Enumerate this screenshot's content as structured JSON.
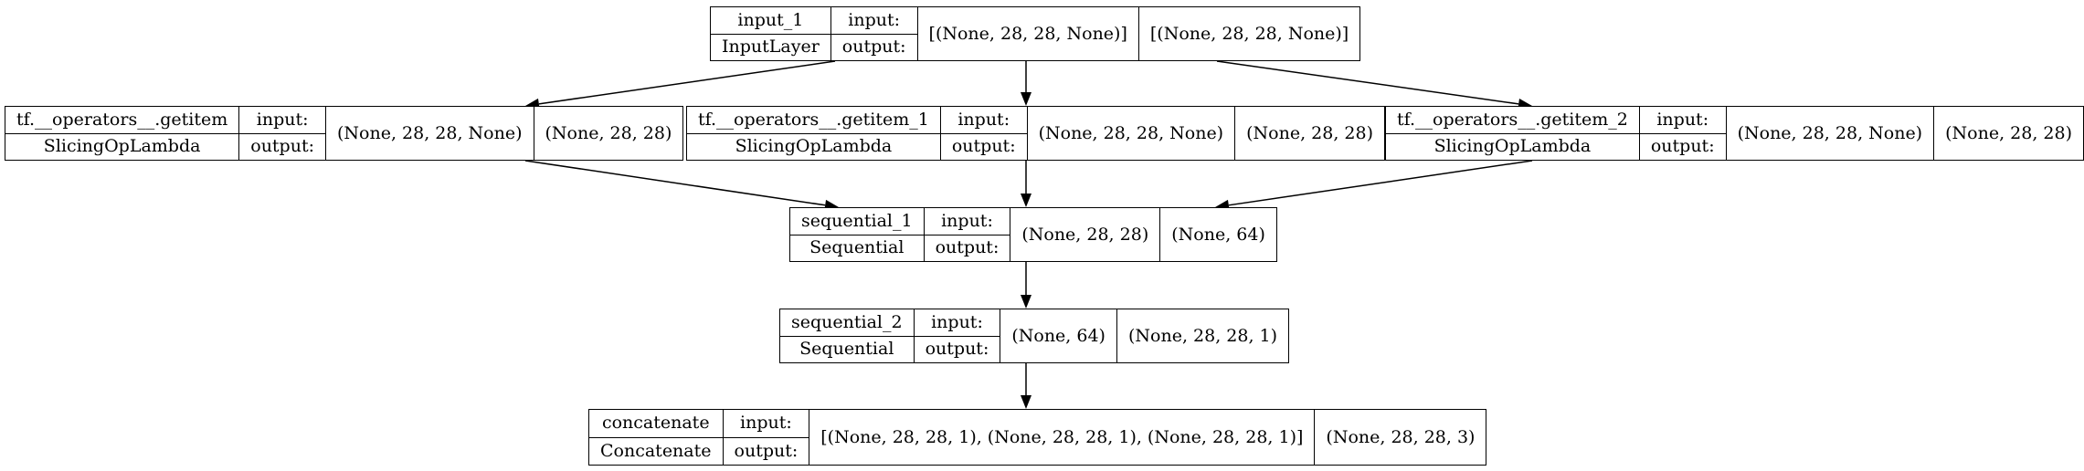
{
  "diagram": {
    "nodes": [
      {
        "id": "input_1",
        "name": "input_1",
        "type": "InputLayer",
        "input_label": "input:",
        "output_label": "output:",
        "input_shape": "[(None, 28, 28, None)]",
        "output_shape": "[(None, 28, 28, None)]"
      },
      {
        "id": "getitem",
        "name": "tf.__operators__.getitem",
        "type": "SlicingOpLambda",
        "input_label": "input:",
        "output_label": "output:",
        "input_shape": "(None, 28, 28, None)",
        "output_shape": "(None, 28, 28)"
      },
      {
        "id": "getitem_1",
        "name": "tf.__operators__.getitem_1",
        "type": "SlicingOpLambda",
        "input_label": "input:",
        "output_label": "output:",
        "input_shape": "(None, 28, 28, None)",
        "output_shape": "(None, 28, 28)"
      },
      {
        "id": "getitem_2",
        "name": "tf.__operators__.getitem_2",
        "type": "SlicingOpLambda",
        "input_label": "input:",
        "output_label": "output:",
        "input_shape": "(None, 28, 28, None)",
        "output_shape": "(None, 28, 28)"
      },
      {
        "id": "sequential_1",
        "name": "sequential_1",
        "type": "Sequential",
        "input_label": "input:",
        "output_label": "output:",
        "input_shape": "(None, 28, 28)",
        "output_shape": "(None, 64)"
      },
      {
        "id": "sequential_2",
        "name": "sequential_2",
        "type": "Sequential",
        "input_label": "input:",
        "output_label": "output:",
        "input_shape": "(None, 64)",
        "output_shape": "(None, 28, 28, 1)"
      },
      {
        "id": "concatenate",
        "name": "concatenate",
        "type": "Concatenate",
        "input_label": "input:",
        "output_label": "output:",
        "input_shape": "[(None, 28, 28, 1), (None, 28, 28, 1), (None, 28, 28, 1)]",
        "output_shape": "(None, 28, 28, 3)"
      }
    ],
    "edges": [
      {
        "from": "input_1",
        "to": "getitem"
      },
      {
        "from": "input_1",
        "to": "getitem_1"
      },
      {
        "from": "input_1",
        "to": "getitem_2"
      },
      {
        "from": "getitem",
        "to": "sequential_1"
      },
      {
        "from": "getitem_1",
        "to": "sequential_1"
      },
      {
        "from": "getitem_2",
        "to": "sequential_1"
      },
      {
        "from": "sequential_1",
        "to": "sequential_2"
      },
      {
        "from": "sequential_2",
        "to": "concatenate"
      }
    ]
  }
}
